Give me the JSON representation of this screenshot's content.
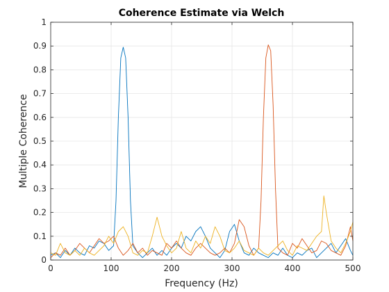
{
  "chart_data": {
    "type": "line",
    "title": "Coherence Estimate via Welch",
    "xlabel": "Frequency (Hz)",
    "ylabel": "Multiple Coherence",
    "xlim": [
      0,
      500
    ],
    "ylim": [
      0,
      1
    ],
    "xticks": [
      "0",
      "100",
      "200",
      "300",
      "400",
      "500"
    ],
    "yticks": [
      "0",
      "0.1",
      "0.2",
      "0.3",
      "0.4",
      "0.5",
      "0.6",
      "0.7",
      "0.8",
      "0.9",
      "1"
    ],
    "grid": true,
    "colors": {
      "series1": "#0072BD",
      "series2": "#D95319",
      "series3": "#EDB120"
    },
    "series": [
      {
        "color": "#0072BD",
        "x": [
          0,
          8,
          16,
          24,
          32,
          40,
          48,
          56,
          64,
          72,
          80,
          88,
          96,
          104,
          108,
          112,
          116,
          120,
          124,
          128,
          132,
          136,
          144,
          152,
          160,
          168,
          176,
          184,
          192,
          200,
          208,
          216,
          224,
          232,
          240,
          248,
          256,
          264,
          272,
          280,
          288,
          296,
          304,
          312,
          320,
          328,
          336,
          344,
          352,
          360,
          368,
          376,
          384,
          392,
          400,
          408,
          416,
          424,
          432,
          440,
          448,
          456,
          464,
          472,
          480,
          488,
          496,
          500
        ],
        "y": [
          0.02,
          0.03,
          0.01,
          0.04,
          0.02,
          0.05,
          0.03,
          0.02,
          0.06,
          0.05,
          0.08,
          0.07,
          0.04,
          0.06,
          0.25,
          0.6,
          0.85,
          0.895,
          0.85,
          0.6,
          0.25,
          0.06,
          0.03,
          0.01,
          0.03,
          0.05,
          0.02,
          0.04,
          0.02,
          0.05,
          0.07,
          0.05,
          0.1,
          0.08,
          0.12,
          0.14,
          0.1,
          0.05,
          0.03,
          0.01,
          0.04,
          0.12,
          0.15,
          0.08,
          0.03,
          0.02,
          0.05,
          0.03,
          0.02,
          0.01,
          0.03,
          0.02,
          0.05,
          0.02,
          0.01,
          0.03,
          0.02,
          0.04,
          0.05,
          0.01,
          0.03,
          0.05,
          0.07,
          0.03,
          0.06,
          0.09,
          0.04,
          0.02
        ]
      },
      {
        "color": "#D95319",
        "x": [
          0,
          8,
          16,
          24,
          32,
          40,
          48,
          56,
          64,
          72,
          80,
          88,
          96,
          104,
          112,
          120,
          128,
          136,
          144,
          152,
          160,
          168,
          176,
          184,
          192,
          200,
          208,
          216,
          224,
          232,
          240,
          248,
          256,
          264,
          272,
          280,
          288,
          296,
          304,
          312,
          320,
          328,
          336,
          344,
          348,
          352,
          356,
          360,
          364,
          368,
          372,
          376,
          384,
          392,
          400,
          408,
          416,
          424,
          432,
          440,
          448,
          456,
          464,
          472,
          480,
          488,
          496,
          500
        ],
        "y": [
          0.01,
          0.03,
          0.02,
          0.05,
          0.02,
          0.04,
          0.07,
          0.05,
          0.03,
          0.06,
          0.09,
          0.07,
          0.08,
          0.1,
          0.05,
          0.02,
          0.04,
          0.07,
          0.03,
          0.05,
          0.02,
          0.04,
          0.03,
          0.02,
          0.07,
          0.05,
          0.08,
          0.05,
          0.03,
          0.02,
          0.05,
          0.07,
          0.05,
          0.03,
          0.02,
          0.03,
          0.05,
          0.03,
          0.07,
          0.17,
          0.14,
          0.06,
          0.02,
          0.05,
          0.25,
          0.6,
          0.85,
          0.905,
          0.88,
          0.65,
          0.3,
          0.05,
          0.03,
          0.02,
          0.07,
          0.05,
          0.09,
          0.06,
          0.03,
          0.04,
          0.08,
          0.07,
          0.04,
          0.03,
          0.02,
          0.06,
          0.14,
          0.08
        ]
      },
      {
        "color": "#EDB120",
        "x": [
          0,
          8,
          16,
          24,
          32,
          40,
          48,
          56,
          64,
          72,
          80,
          88,
          96,
          104,
          112,
          120,
          128,
          136,
          144,
          152,
          160,
          168,
          176,
          184,
          192,
          200,
          208,
          216,
          224,
          232,
          240,
          248,
          256,
          264,
          272,
          280,
          288,
          296,
          304,
          312,
          320,
          328,
          336,
          344,
          352,
          360,
          368,
          376,
          384,
          392,
          400,
          408,
          416,
          424,
          432,
          440,
          448,
          452,
          456,
          464,
          472,
          480,
          488,
          496,
          500
        ],
        "y": [
          0.03,
          0.02,
          0.07,
          0.03,
          0.02,
          0.04,
          0.02,
          0.05,
          0.03,
          0.02,
          0.04,
          0.06,
          0.1,
          0.07,
          0.12,
          0.14,
          0.1,
          0.03,
          0.02,
          0.04,
          0.03,
          0.1,
          0.18,
          0.1,
          0.06,
          0.03,
          0.05,
          0.12,
          0.05,
          0.03,
          0.08,
          0.05,
          0.1,
          0.07,
          0.14,
          0.1,
          0.04,
          0.03,
          0.05,
          0.08,
          0.04,
          0.03,
          0.02,
          0.05,
          0.03,
          0.02,
          0.04,
          0.06,
          0.08,
          0.04,
          0.02,
          0.06,
          0.05,
          0.04,
          0.07,
          0.1,
          0.12,
          0.27,
          0.2,
          0.08,
          0.05,
          0.03,
          0.07,
          0.12,
          0.16
        ]
      }
    ]
  }
}
